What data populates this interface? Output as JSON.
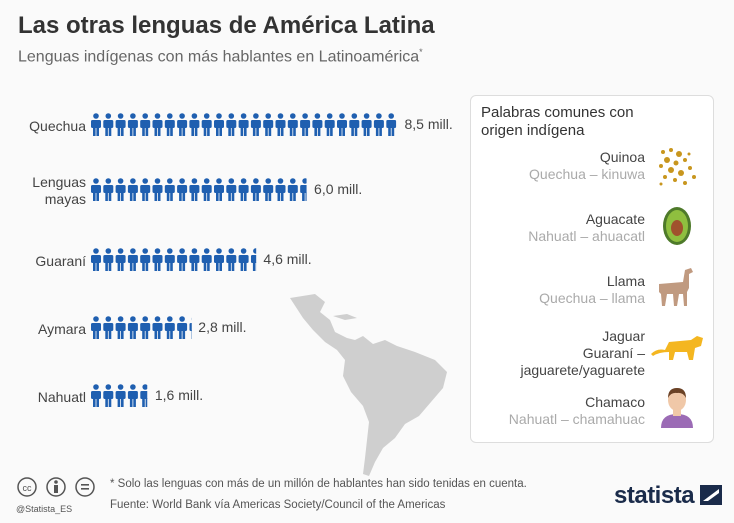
{
  "header": {
    "title": "Las otras lenguas de América Latina",
    "subtitle": "Lenguas indígenas con más hablantes en Latinoamérica",
    "subtitle_mark": "*"
  },
  "chart_data": {
    "type": "bar",
    "title": "Las otras lenguas de América Latina",
    "subtitle": "Lenguas indígenas con más hablantes en Latinoamérica*",
    "unit": "millones de hablantes",
    "categories": [
      "Quechua",
      "Lenguas mayas",
      "Guaraní",
      "Aymara",
      "Nahuatl"
    ],
    "category_lines": [
      [
        "Quechua"
      ],
      [
        "Lenguas",
        "mayas"
      ],
      [
        "Guaraní"
      ],
      [
        "Aymara"
      ],
      [
        "Nahuatl"
      ]
    ],
    "values": [
      8.5,
      6.0,
      4.6,
      2.8,
      1.6
    ],
    "value_labels": [
      "8,5 mill.",
      "6,0 mill.",
      "4,6 mill.",
      "2,8 mill.",
      "1,6 mill."
    ],
    "mark": "person-icon",
    "color": "#1f5fb0"
  },
  "panel": {
    "title": "Palabras comunes con origen indígena",
    "items": [
      {
        "word": "Quinoa",
        "origin": "Quechua – kinuwa",
        "icon": "quinoa-icon"
      },
      {
        "word": "Aguacate",
        "origin": "Nahuatl – ahuacatl",
        "icon": "avocado-icon"
      },
      {
        "word": "Llama",
        "origin": "Quechua – llama",
        "icon": "llama-icon"
      },
      {
        "word": "Jaguar",
        "origin": "Guaraní – jaguarete/yaguarete",
        "icon": "jaguar-icon"
      },
      {
        "word": "Chamaco",
        "origin": "Nahuatl  – chamahuac",
        "icon": "person-icon"
      }
    ]
  },
  "footer": {
    "note": "* Solo las lenguas con más de un millón de hablantes han sido tenidas en cuenta.",
    "source": "Fuente: World Bank vía Americas Society/Council of the Americas",
    "handle": "@Statista_ES",
    "brand": "statista"
  }
}
